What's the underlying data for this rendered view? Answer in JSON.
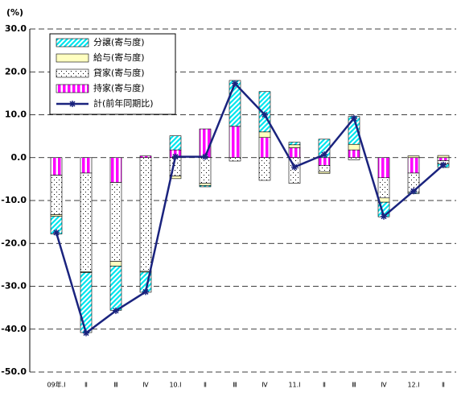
{
  "chart_data": {
    "type": "bar",
    "unit_label": "(%)",
    "categories": [
      "09年.Ⅰ",
      "Ⅱ",
      "Ⅲ",
      "Ⅳ",
      "10.Ⅰ",
      "Ⅱ",
      "Ⅲ",
      "Ⅳ",
      "11.Ⅰ",
      "Ⅱ",
      "Ⅲ",
      "Ⅳ",
      "12.Ⅰ",
      "Ⅱ"
    ],
    "series": [
      {
        "name": "分譲(寄与度)",
        "color": "#00e5ee",
        "pattern": "diagonal",
        "values": [
          -4.1,
          -14,
          -10.3,
          -4.7,
          3.3,
          -0.3,
          10.7,
          9.4,
          0.6,
          4.3,
          6.5,
          -3.4,
          -0.3,
          -0.8
        ]
      },
      {
        "name": "給与(寄与度)",
        "color": "#ffffc0",
        "pattern": "solid",
        "values": [
          -0.4,
          -0.2,
          -1.1,
          -0.2,
          -0.6,
          -0.5,
          0,
          1.3,
          0.7,
          -0.4,
          1.3,
          -1,
          0.4,
          0.5
        ]
      },
      {
        "name": "貸家(寄与度)",
        "color": "#ffffff",
        "pattern": "dots",
        "values": [
          -9.2,
          -23,
          -18.4,
          -26.5,
          -4.3,
          -6,
          -0.8,
          -5.3,
          -6,
          -1.5,
          -0.5,
          -4.7,
          -4.5,
          -0.8
        ]
      },
      {
        "name": "持家(寄与度)",
        "color": "#ff00ff",
        "pattern": "vertical",
        "values": [
          -4.1,
          -3.6,
          -5.8,
          0.4,
          1.8,
          6.7,
          7.3,
          4.7,
          2.3,
          -1.8,
          1.8,
          -4.7,
          -3.6,
          -0.7
        ]
      },
      {
        "name": "計(前年同期比)",
        "type": "line",
        "color": "#1a237e",
        "values": [
          -17.5,
          -40.9,
          -35.7,
          -31.3,
          0.2,
          0.2,
          17.3,
          10,
          -2.2,
          0.7,
          9.2,
          -13.7,
          -7.8,
          -1.7
        ]
      }
    ],
    "ylim": [
      -50,
      30
    ],
    "yticks": [
      {
        "value": -50,
        "label": "-50.0"
      },
      {
        "value": -40,
        "label": "-40.0"
      },
      {
        "value": -30,
        "label": "-30.0"
      },
      {
        "value": -20,
        "label": "-20.0"
      },
      {
        "value": -10,
        "label": "-10.0"
      },
      {
        "value": 0,
        "label": "0.0"
      },
      {
        "value": 10,
        "label": "10.0"
      },
      {
        "value": 20,
        "label": "20.0"
      },
      {
        "value": 30,
        "label": "30.0"
      }
    ],
    "grid": true
  }
}
